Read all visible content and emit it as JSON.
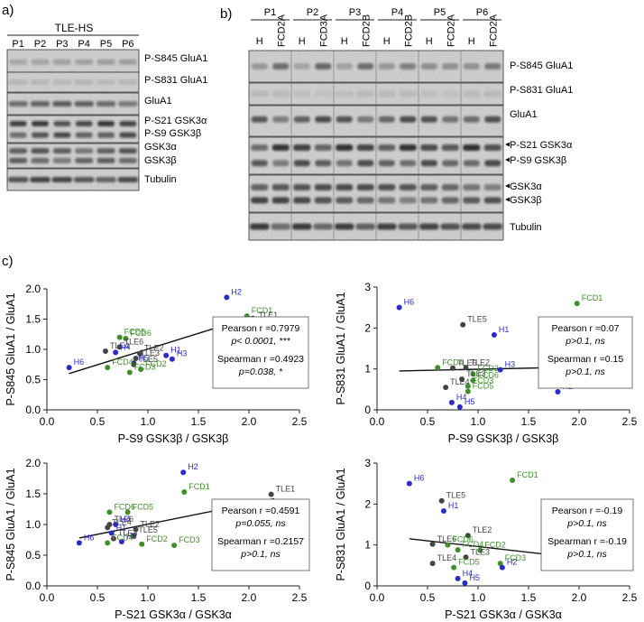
{
  "panels": {
    "a": {
      "label": "a)",
      "group_label": "TLE-HS",
      "lanes": [
        "P1",
        "P2",
        "P3",
        "P4",
        "P5",
        "P6"
      ],
      "blots": [
        "P-S845 GluA1",
        "P-S831 GluA1",
        "GluA1",
        "P-S21 GSK3α",
        "P-S9 GSK3β",
        "GSK3α",
        "GSK3β",
        "Tubulin"
      ]
    },
    "b": {
      "label": "b)",
      "patients": [
        "P1",
        "P2",
        "P3",
        "P4",
        "P5",
        "P6"
      ],
      "lanes": [
        "H",
        "FCD2A",
        "H",
        "FCD3A",
        "H",
        "FCD2B",
        "H",
        "FCD2B",
        "H",
        "FCD2A",
        "H",
        "FCD2A"
      ],
      "blots": [
        "P-S845 GluA1",
        "P-S831 GluA1",
        "GluA1",
        "P-S21 GSK3α",
        "P-S9 GSK3β",
        "GSK3α",
        "GSK3β",
        "Tubulin"
      ]
    },
    "c": {
      "label": "c)"
    }
  },
  "colors": {
    "H": "#2b2bc8",
    "FCD": "#3f8f2b",
    "TLE": "#444444",
    "text": "#111111"
  },
  "chart_data": [
    {
      "type": "scatter",
      "xlabel": "P-S9 GSK3β / GSK3β",
      "ylabel": "P-S845 GluA1 / GluA1",
      "xlim": [
        0,
        2.5
      ],
      "ylim": [
        0,
        2.0
      ],
      "xticks": [
        "0.0",
        "0.5",
        "1.0",
        "1.5",
        "2.0",
        "2.5"
      ],
      "yticks": [
        "0.0",
        "0.5",
        "1.0",
        "1.5",
        "2.0"
      ],
      "stats": [
        "Pearson r =0.7979",
        "p< 0.0001, ***",
        "Spearman r =0.4923",
        "p=0.038, *"
      ],
      "fit": [
        [
          0.22,
          0.6
        ],
        [
          2.05,
          1.55
        ]
      ],
      "points": [
        {
          "label": "H2",
          "x": 1.78,
          "y": 1.86,
          "group": "H"
        },
        {
          "label": "FCD1",
          "x": 1.98,
          "y": 1.55,
          "group": "FCD"
        },
        {
          "label": "TLE1",
          "x": 2.05,
          "y": 1.48,
          "group": "TLE"
        },
        {
          "label": "FCD5",
          "x": 0.72,
          "y": 1.2,
          "group": "FCD"
        },
        {
          "label": "FCD6",
          "x": 0.78,
          "y": 1.18,
          "group": "FCD"
        },
        {
          "label": "TLE6",
          "x": 0.72,
          "y": 1.04,
          "group": "TLE"
        },
        {
          "label": "TLE4",
          "x": 0.58,
          "y": 0.97,
          "group": "TLE"
        },
        {
          "label": "H4",
          "x": 0.68,
          "y": 0.95,
          "group": "H"
        },
        {
          "label": "TLE2",
          "x": 0.92,
          "y": 0.93,
          "group": "TLE"
        },
        {
          "label": "H1",
          "x": 1.18,
          "y": 0.9,
          "group": "H"
        },
        {
          "label": "TLE3",
          "x": 0.88,
          "y": 0.85,
          "group": "TLE"
        },
        {
          "label": "H3",
          "x": 1.24,
          "y": 0.84,
          "group": "H"
        },
        {
          "label": "H5",
          "x": 0.86,
          "y": 0.77,
          "group": "H"
        },
        {
          "label": "TLE5",
          "x": 0.86,
          "y": 0.75,
          "group": "TLE"
        },
        {
          "label": "H6",
          "x": 0.22,
          "y": 0.7,
          "group": "H"
        },
        {
          "label": "FCD4",
          "x": 0.6,
          "y": 0.7,
          "group": "FCD"
        },
        {
          "label": "FCD2",
          "x": 0.93,
          "y": 0.67,
          "group": "FCD"
        },
        {
          "label": "FCD3",
          "x": 0.82,
          "y": 0.62,
          "group": "FCD"
        }
      ]
    },
    {
      "type": "scatter",
      "xlabel": "P-S9 GSK3β / GSK3β",
      "ylabel": "P-S831 GluA1 / GluA1",
      "xlim": [
        0,
        2.5
      ],
      "ylim": [
        0,
        3
      ],
      "xticks": [
        "0.0",
        "0.5",
        "1.0",
        "1.5",
        "2.0",
        "2.5"
      ],
      "yticks": [
        "0",
        "1",
        "2",
        "3"
      ],
      "stats": [
        "Pearson r =0.07",
        "p>0.1, ns",
        "Spearman r =0.15",
        "p>0.1, ns"
      ],
      "fit": [
        [
          0.22,
          0.95
        ],
        [
          2.05,
          1.05
        ]
      ],
      "points": [
        {
          "label": "FCD1",
          "x": 1.98,
          "y": 2.6,
          "group": "FCD"
        },
        {
          "label": "H6",
          "x": 0.22,
          "y": 2.5,
          "group": "H"
        },
        {
          "label": "TLE5",
          "x": 0.85,
          "y": 2.08,
          "group": "TLE"
        },
        {
          "label": "H1",
          "x": 1.16,
          "y": 1.83,
          "group": "H"
        },
        {
          "label": "FCD4",
          "x": 0.6,
          "y": 1.03,
          "group": "FCD"
        },
        {
          "label": "TLE6",
          "x": 0.75,
          "y": 1.02,
          "group": "TLE"
        },
        {
          "label": "TLE2",
          "x": 0.88,
          "y": 1.03,
          "group": "TLE"
        },
        {
          "label": "H3",
          "x": 1.22,
          "y": 0.98,
          "group": "H"
        },
        {
          "label": "FCD2",
          "x": 0.95,
          "y": 0.88,
          "group": "FCD"
        },
        {
          "label": "TLE3",
          "x": 0.84,
          "y": 0.75,
          "group": "TLE"
        },
        {
          "label": "FCD6",
          "x": 0.95,
          "y": 0.72,
          "group": "FCD"
        },
        {
          "label": "TLE1",
          "x": 2.05,
          "y": 0.7,
          "group": "TLE"
        },
        {
          "label": "FCD3",
          "x": 0.9,
          "y": 0.58,
          "group": "FCD"
        },
        {
          "label": "TLE4",
          "x": 0.68,
          "y": 0.55,
          "group": "TLE"
        },
        {
          "label": "FCD5",
          "x": 0.9,
          "y": 0.45,
          "group": "FCD"
        },
        {
          "label": "H2",
          "x": 1.79,
          "y": 0.44,
          "group": "H"
        },
        {
          "label": "H4",
          "x": 0.74,
          "y": 0.18,
          "group": "H"
        },
        {
          "label": "H5",
          "x": 0.82,
          "y": 0.07,
          "group": "H"
        }
      ]
    },
    {
      "type": "scatter",
      "xlabel": "P-S21 GSK3α / GSK3α",
      "ylabel": "P-S845 GluA1 / GluA1",
      "xlim": [
        0,
        2.5
      ],
      "ylim": [
        0.0,
        2.0
      ],
      "xticks": [
        "0.0",
        "0.5",
        "1.0",
        "1.5",
        "2.0",
        "2.5"
      ],
      "yticks": [
        "0.0",
        "0.5",
        "1.0",
        "1.5",
        "2.0"
      ],
      "stats": [
        "Pearson r =0.4591",
        "p=0.055, ns",
        "Spearman r =0.2157",
        "p>0.1, ns"
      ],
      "fit": [
        [
          0.32,
          0.78
        ],
        [
          2.25,
          1.42
        ]
      ],
      "points": [
        {
          "label": "H2",
          "x": 1.35,
          "y": 1.85,
          "group": "H"
        },
        {
          "label": "FCD1",
          "x": 1.36,
          "y": 1.53,
          "group": "FCD"
        },
        {
          "label": "TLE1",
          "x": 2.22,
          "y": 1.49,
          "group": "TLE"
        },
        {
          "label": "FCD6",
          "x": 0.62,
          "y": 1.2,
          "group": "FCD"
        },
        {
          "label": "FCD5",
          "x": 0.8,
          "y": 1.2,
          "group": "FCD"
        },
        {
          "label": "TLE6",
          "x": 0.62,
          "y": 1.0,
          "group": "TLE"
        },
        {
          "label": "H4",
          "x": 0.68,
          "y": 1.0,
          "group": "H"
        },
        {
          "label": "TLE4",
          "x": 0.6,
          "y": 0.95,
          "group": "TLE"
        },
        {
          "label": "TLE2",
          "x": 0.88,
          "y": 0.92,
          "group": "TLE"
        },
        {
          "label": "H1",
          "x": 0.64,
          "y": 0.86,
          "group": "H"
        },
        {
          "label": "H3",
          "x": 1.88,
          "y": 0.86,
          "group": "H"
        },
        {
          "label": "TLE3",
          "x": 0.66,
          "y": 0.77,
          "group": "TLE"
        },
        {
          "label": "TLE5",
          "x": 0.86,
          "y": 0.82,
          "group": "TLE"
        },
        {
          "label": "H6",
          "x": 0.32,
          "y": 0.7,
          "group": "H"
        },
        {
          "label": "H5",
          "x": 0.74,
          "y": 0.72,
          "group": "H"
        },
        {
          "label": "FCD4",
          "x": 0.6,
          "y": 0.7,
          "group": "FCD"
        },
        {
          "label": "FCD2",
          "x": 0.94,
          "y": 0.68,
          "group": "FCD"
        },
        {
          "label": "FCD3",
          "x": 1.26,
          "y": 0.66,
          "group": "FCD"
        }
      ]
    },
    {
      "type": "scatter",
      "xlabel": "P-S21 GSK3α / GSK3α",
      "ylabel": "P-S831 GluA1 / GluA1",
      "xlim": [
        0,
        2.5
      ],
      "ylim": [
        0,
        3
      ],
      "xticks": [
        "0.0",
        "0.5",
        "1.0",
        "1.5",
        "2.0",
        "2.5"
      ],
      "yticks": [
        "0",
        "1",
        "2",
        "3"
      ],
      "stats": [
        "Pearson r =-0.19",
        "p>0.1, ns",
        "Spearman r =-0.19",
        "p>0.1, ns"
      ],
      "fit": [
        [
          0.32,
          1.15
        ],
        [
          2.22,
          0.62
        ]
      ],
      "points": [
        {
          "label": "FCD1",
          "x": 1.34,
          "y": 2.58,
          "group": "FCD"
        },
        {
          "label": "H6",
          "x": 0.32,
          "y": 2.5,
          "group": "H"
        },
        {
          "label": "TLE5",
          "x": 0.64,
          "y": 2.08,
          "group": "TLE"
        },
        {
          "label": "H1",
          "x": 0.66,
          "y": 1.83,
          "group": "H"
        },
        {
          "label": "TLE2",
          "x": 0.9,
          "y": 1.23,
          "group": "TLE"
        },
        {
          "label": "TLE6",
          "x": 0.55,
          "y": 1.02,
          "group": "TLE"
        },
        {
          "label": "FCD6",
          "x": 0.7,
          "y": 1.0,
          "group": "FCD"
        },
        {
          "label": "H3",
          "x": 1.82,
          "y": 0.98,
          "group": "H"
        },
        {
          "label": "FCD4",
          "x": 0.8,
          "y": 0.88,
          "group": "FCD"
        },
        {
          "label": "FCD2",
          "x": 1.02,
          "y": 0.87,
          "group": "FCD"
        },
        {
          "label": "TLE3",
          "x": 0.88,
          "y": 0.7,
          "group": "TLE"
        },
        {
          "label": "TLE1",
          "x": 2.22,
          "y": 0.65,
          "group": "TLE"
        },
        {
          "label": "TLE4",
          "x": 0.55,
          "y": 0.55,
          "group": "TLE"
        },
        {
          "label": "FCD3",
          "x": 1.22,
          "y": 0.55,
          "group": "FCD"
        },
        {
          "label": "FCD5",
          "x": 0.76,
          "y": 0.45,
          "group": "FCD"
        },
        {
          "label": "H2",
          "x": 1.24,
          "y": 0.45,
          "group": "H"
        },
        {
          "label": "H4",
          "x": 0.8,
          "y": 0.18,
          "group": "H"
        },
        {
          "label": "H5",
          "x": 0.87,
          "y": 0.07,
          "group": "H"
        }
      ]
    }
  ]
}
